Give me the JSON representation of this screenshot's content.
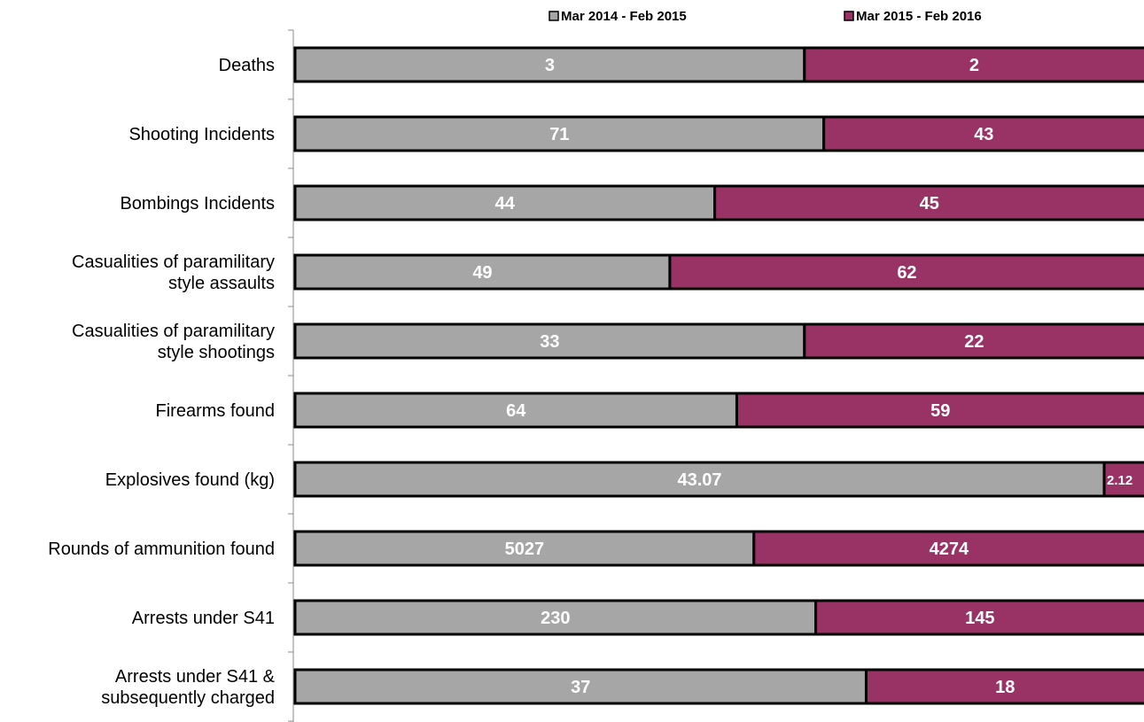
{
  "chart_data": {
    "type": "bar",
    "orientation": "horizontal",
    "stacked": "percent",
    "categories": [
      [
        "Deaths"
      ],
      [
        "Shooting Incidents"
      ],
      [
        "Bombings Incidents"
      ],
      [
        "Casualities of paramilitary",
        "style assaults"
      ],
      [
        "Casualities of paramilitary",
        "style shootings"
      ],
      [
        "Firearms found"
      ],
      [
        "Explosives found (kg)"
      ],
      [
        "Rounds of ammunition found"
      ],
      [
        "Arrests under S41"
      ],
      [
        "Arrests under S41 &",
        "subsequently charged"
      ]
    ],
    "series": [
      {
        "name": "Mar 2014 - Feb 2015",
        "color": "#a6a6a6",
        "values": [
          3,
          71,
          44,
          49,
          33,
          64,
          43.07,
          5027,
          230,
          37
        ],
        "labels": [
          "3",
          "71",
          "44",
          "49",
          "33",
          "64",
          "43.07",
          "5027",
          "230",
          "37"
        ]
      },
      {
        "name": "Mar 2015 - Feb 2016",
        "color": "#993366",
        "values": [
          2,
          43,
          45,
          62,
          22,
          59,
          2.12,
          4274,
          145,
          18
        ],
        "labels": [
          "2",
          "43",
          "45",
          "62",
          "22",
          "59",
          "2.12",
          "4274",
          "145",
          "18"
        ]
      }
    ],
    "legend_position": "top",
    "grid": false
  }
}
